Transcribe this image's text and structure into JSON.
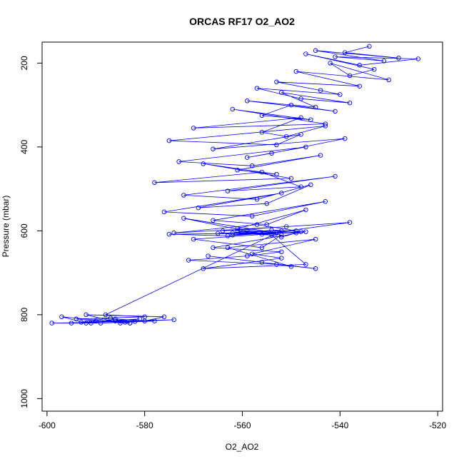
{
  "chart_data": {
    "type": "scatter",
    "title": "ORCAS RF17 O2_AO2",
    "xlabel": "O2_AO2",
    "ylabel": "Pressure (mbar)",
    "xlim": [
      -601,
      -519
    ],
    "ylim": [
      1030,
      150
    ],
    "y_inverted": true,
    "x_ticks": [
      -600,
      -580,
      -560,
      -540,
      -520
    ],
    "x_tick_labels": [
      "-600",
      "-580",
      "-560",
      "-540",
      "-520"
    ],
    "y_ticks": [
      200,
      400,
      600,
      800,
      1000
    ],
    "y_tick_labels": [
      "200",
      "400",
      "600",
      "800",
      "1000"
    ],
    "marker": "open-circle",
    "connected": true,
    "grid": false,
    "series_color": "#0000ff",
    "x": [
      -534,
      -539,
      -528,
      -545,
      -531,
      -541,
      -524,
      -536,
      -547,
      -533,
      -538,
      -542,
      -530,
      -549,
      -536,
      -553,
      -544,
      -540,
      -557,
      -548,
      -538,
      -552,
      -545,
      -559,
      -541,
      -550,
      -556,
      -546,
      -562,
      -543,
      -570,
      -548,
      -556,
      -551,
      -543,
      -575,
      -553,
      -548,
      -566,
      -539,
      -554,
      -559,
      -547,
      -573,
      -558,
      -544,
      -561,
      -553,
      -568,
      -550,
      -578,
      -556,
      -548,
      -563,
      -541,
      -572,
      -557,
      -546,
      -555,
      -569,
      -552,
      -576,
      -558,
      -543,
      -566,
      -555,
      -547,
      -561,
      -553,
      -572,
      -556,
      -538,
      -564,
      -551,
      -574,
      -557,
      -549,
      -562,
      -554,
      -547,
      -566,
      -552,
      -559,
      -571,
      -553,
      -545,
      -567,
      -556,
      -550,
      -563,
      -545,
      -558,
      -552,
      -568,
      -547,
      -554,
      -562,
      -559,
      -552,
      -548,
      -570,
      -556,
      -552,
      -561,
      -549,
      -575,
      -563,
      -553,
      -565,
      -552,
      -588,
      -580,
      -594,
      -590,
      -583,
      -597,
      -592,
      -586,
      -581,
      -595,
      -589,
      -584,
      -578,
      -599,
      -591,
      -586,
      -580,
      -576,
      -592,
      -585,
      -582,
      -574,
      -593,
      -587,
      -583
    ],
    "y": [
      160,
      175,
      188,
      170,
      195,
      185,
      190,
      205,
      178,
      215,
      230,
      200,
      240,
      220,
      255,
      245,
      265,
      275,
      260,
      285,
      295,
      270,
      305,
      290,
      315,
      300,
      325,
      335,
      310,
      345,
      355,
      330,
      365,
      375,
      350,
      385,
      395,
      370,
      405,
      380,
      415,
      425,
      400,
      435,
      445,
      420,
      455,
      465,
      440,
      475,
      485,
      460,
      495,
      505,
      470,
      515,
      525,
      490,
      535,
      545,
      510,
      555,
      565,
      530,
      575,
      585,
      550,
      595,
      605,
      570,
      608,
      580,
      600,
      590,
      605,
      585,
      600,
      610,
      598,
      602,
      640,
      650,
      660,
      670,
      680,
      690,
      660,
      675,
      685,
      640,
      620,
      655,
      665,
      690,
      680,
      610,
      605,
      600,
      615,
      602,
      620,
      640,
      610,
      600,
      605,
      608,
      612,
      604,
      606,
      600,
      800,
      805,
      810,
      815,
      820,
      805,
      820,
      815,
      810,
      820,
      820,
      818,
      815,
      820,
      820,
      810,
      815,
      805,
      800,
      820,
      816,
      812,
      818,
      808,
      820
    ]
  }
}
